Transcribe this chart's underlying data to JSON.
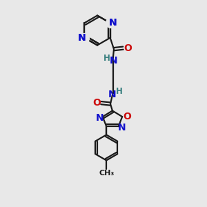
{
  "bg_color": "#e8e8e8",
  "bond_color": "#1a1a1a",
  "N_color": "#1010cc",
  "O_color": "#cc1010",
  "H_color": "#3a8080",
  "figsize": [
    3.0,
    3.0
  ],
  "dpi": 100,
  "xlim": [
    0,
    10
  ],
  "ylim": [
    0,
    10
  ]
}
